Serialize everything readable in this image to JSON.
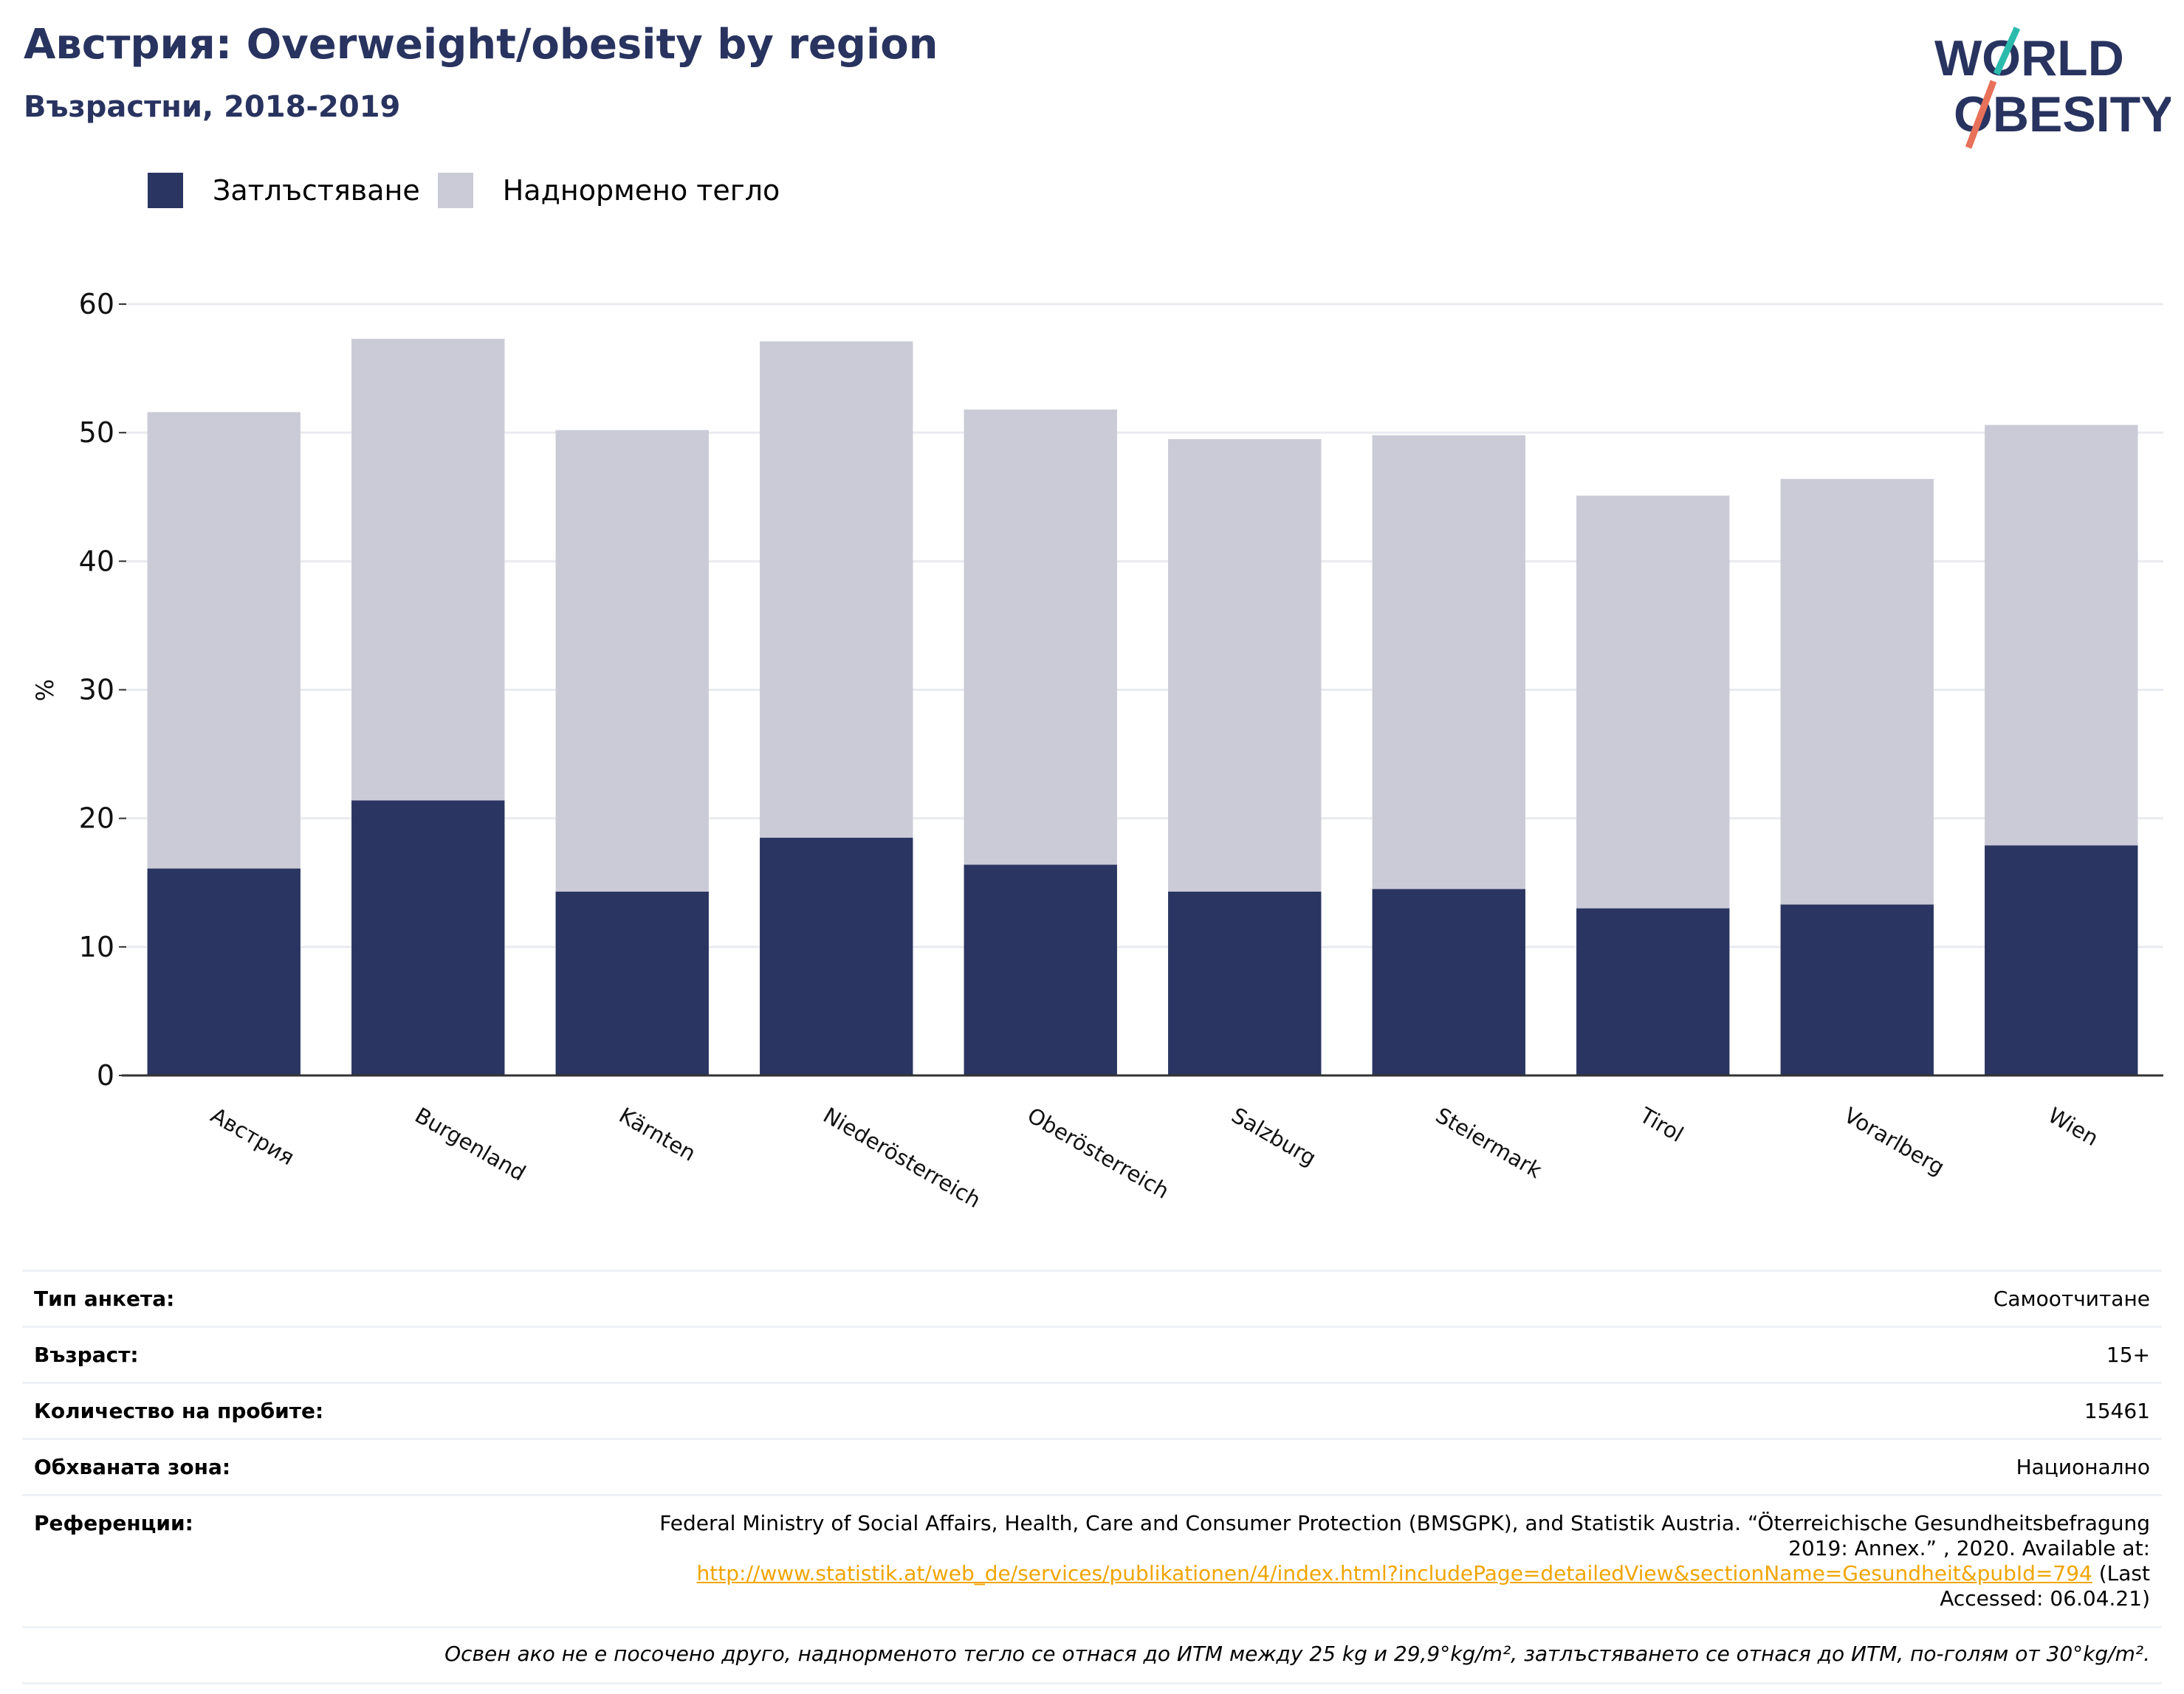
{
  "header": {
    "title": "Австрия: Overweight/obesity by region",
    "subtitle": "Възрастни, 2018-2019"
  },
  "logo": {
    "line1": "WORLD",
    "line2": "OBESITY",
    "colors": {
      "text": "#28335f",
      "slash_top": "#2bbbad",
      "slash_bottom": "#e8715a"
    }
  },
  "colors": {
    "obesity": "#2a3561",
    "overweight": "#cacbd7",
    "axis": "#333333",
    "grid": "#e9ebf0",
    "link": "#f0a500"
  },
  "legend": [
    {
      "label": "Затлъстяване",
      "color": "#2a3561"
    },
    {
      "label": "Наднормено тегло",
      "color": "#cacbd7"
    }
  ],
  "chart_data": {
    "type": "bar",
    "stacked": true,
    "ylabel": "%",
    "ylim": [
      0,
      60
    ],
    "yticks": [
      0,
      10,
      20,
      30,
      40,
      50,
      60
    ],
    "grid": true,
    "legend_position": "top-left",
    "categories": [
      "Австрия",
      "Burgenland",
      "Kärnten",
      "Niederösterreich",
      "Oberösterreich",
      "Salzburg",
      "Steiermark",
      "Tirol",
      "Vorarlberg",
      "Wien"
    ],
    "series": [
      {
        "name": "Затлъстяване",
        "values": [
          16.1,
          21.4,
          14.3,
          18.5,
          16.4,
          14.3,
          14.5,
          13.0,
          13.3,
          17.9
        ]
      },
      {
        "name": "Наднормено тегло",
        "values": [
          35.5,
          35.9,
          35.9,
          38.6,
          35.4,
          35.2,
          35.3,
          32.1,
          33.1,
          32.7
        ]
      }
    ]
  },
  "info": {
    "survey_type": {
      "label": "Тип анкета:",
      "value": "Самоотчитане"
    },
    "age": {
      "label": "Възраст:",
      "value": "15+"
    },
    "sample_size": {
      "label": "Количество на пробите:",
      "value": "15461"
    },
    "coverage": {
      "label": "Обхваната зона:",
      "value": "Национално"
    },
    "references": {
      "label": "Референции:",
      "text_before": "Federal Ministry of Social Affairs, Health, Care and Consumer Protection (BMSGPK), and Statistik Austria. “Öterreichische Gesundheitsbefragung 2019: Annex.” , 2020. Available at:",
      "link": "http://www.statistik.at/web_de/services/publikationen/4/index.html?includePage=detailedView&sectionName=Gesundheit&pubId=794",
      "text_after": " (Last Accessed: 06.04.21)"
    },
    "note": "Освен ако не е посочено друго, наднорменото тегло се отнася до ИТМ между 25 kg и 29,9°kg/m², затлъстяването се отнася до ИТМ, по-голям от 30°kg/m²."
  }
}
